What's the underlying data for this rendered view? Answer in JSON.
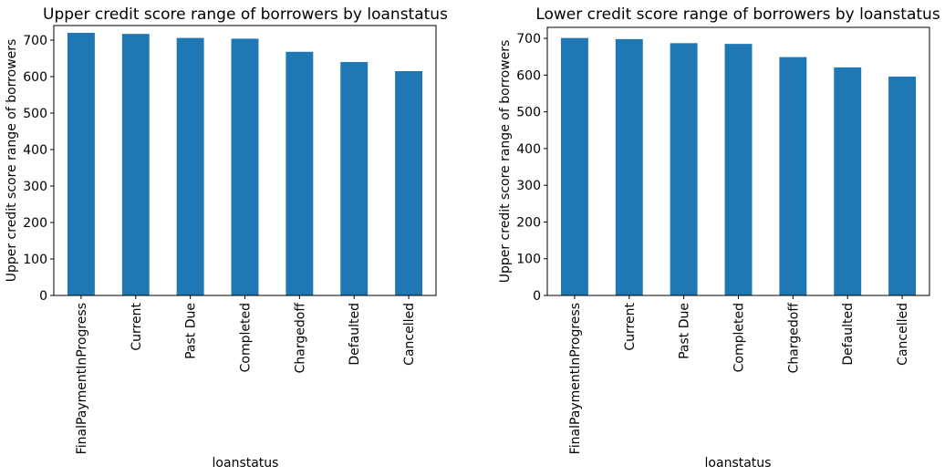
{
  "colors": {
    "bar": "#1f77b4",
    "axis": "#000000",
    "background": "#ffffff"
  },
  "chart_data": [
    {
      "type": "bar",
      "title": "Upper credit score range of borrowers by loanstatus",
      "xlabel": "loanstatus",
      "ylabel": "Upper credit score range of borrowers",
      "categories": [
        "FinalPaymentInProgress",
        "Current",
        "Past Due",
        "Completed",
        "Chargedoff",
        "Defaulted",
        "Cancelled"
      ],
      "values": [
        720,
        717,
        706,
        704,
        668,
        640,
        615
      ],
      "ylim": [
        0,
        740
      ],
      "yticks": [
        0,
        100,
        200,
        300,
        400,
        500,
        600,
        700
      ],
      "grid": false,
      "legend": "none"
    },
    {
      "type": "bar",
      "title": "Lower credit score range of borrowers by loanstatus",
      "xlabel": "loanstatus",
      "ylabel": "Upper credit score range of borrowers",
      "categories": [
        "FinalPaymentInProgress",
        "Current",
        "Past Due",
        "Completed",
        "Chargedoff",
        "Defaulted",
        "Cancelled"
      ],
      "values": [
        701,
        698,
        687,
        685,
        649,
        621,
        596
      ],
      "ylim": [
        0,
        730
      ],
      "yticks": [
        0,
        100,
        200,
        300,
        400,
        500,
        600,
        700
      ],
      "grid": false,
      "legend": "none"
    }
  ]
}
